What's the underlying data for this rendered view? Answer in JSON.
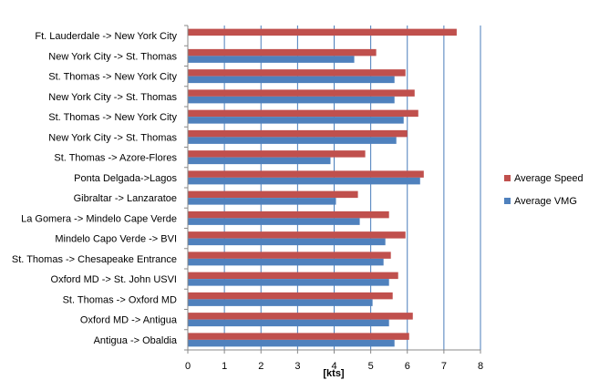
{
  "chart_data": {
    "type": "bar",
    "orientation": "horizontal",
    "categories": [
      "Ft. Lauderdale -> New York City",
      "New York City -> St. Thomas",
      "St. Thomas  -> New York City",
      "New York City ->  St. Thomas",
      "St. Thomas  -> New York City",
      "New York City -> St. Thomas",
      "St. Thomas  -> Azore-Flores",
      "Ponta Delgada->Lagos",
      "Gibraltar -> Lanzaratoe",
      "La Gomera -> Mindelo Cape Verde",
      "Mindelo Capo Verde -> BVI",
      "St. Thomas  -> Chesapeake Entrance",
      "Oxford MD -> St. John USVI",
      "St. Thomas  -> Oxford MD",
      "Oxford MD -> Antigua",
      "Antigua -> Obaldia"
    ],
    "series": [
      {
        "name": "Average Speed",
        "color": "#c0504d",
        "values": [
          7.35,
          5.15,
          5.95,
          6.2,
          6.3,
          6.0,
          4.85,
          6.45,
          4.65,
          5.5,
          5.95,
          5.55,
          5.75,
          5.6,
          6.15,
          6.05
        ]
      },
      {
        "name": "Average VMG",
        "color": "#4f81bd",
        "values": [
          null,
          4.55,
          5.65,
          5.65,
          5.9,
          5.7,
          3.9,
          6.35,
          4.05,
          4.7,
          5.4,
          5.35,
          5.5,
          5.05,
          5.5,
          5.65
        ]
      }
    ],
    "xlabel": "[kts]",
    "ylabel": "",
    "xlim": [
      0,
      8
    ],
    "xticks": [
      "0",
      "1",
      "2",
      "3",
      "4",
      "5",
      "6",
      "7",
      "8"
    ],
    "grid": "vertical major gridlines",
    "legend_position": "right"
  }
}
